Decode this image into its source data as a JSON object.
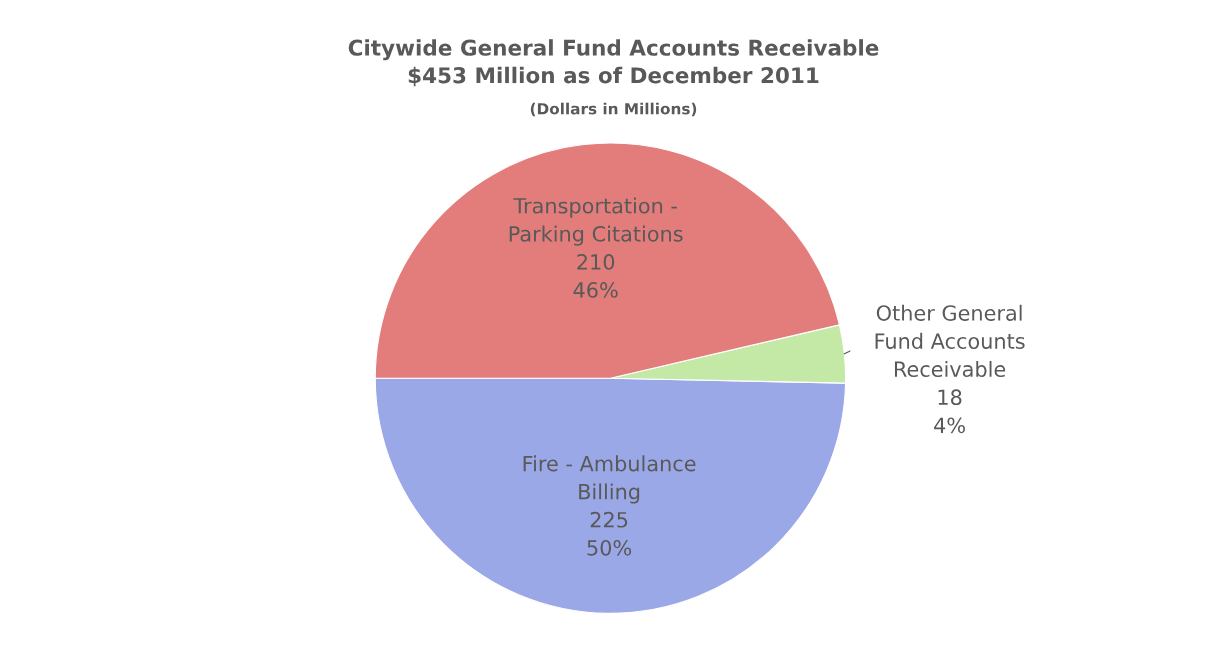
{
  "chart_data": {
    "type": "pie",
    "title": "Citywide General Fund Accounts Receivable\n$453 Million as of December 2011",
    "subtitle": "(Dollars in Millions)",
    "categories": [
      "Fire - Ambulance\nBilling",
      "Other General\nFund Accounts\nReceivable",
      "Transportation -\nParking Citations"
    ],
    "values": [
      225,
      18,
      210
    ],
    "colors": [
      "#9ba8e8",
      "#c4e8a6",
      "#e27d7b"
    ],
    "value_labels": [
      "225\n50%",
      "18\n4%",
      "210\n46%"
    ],
    "legend": false
  }
}
